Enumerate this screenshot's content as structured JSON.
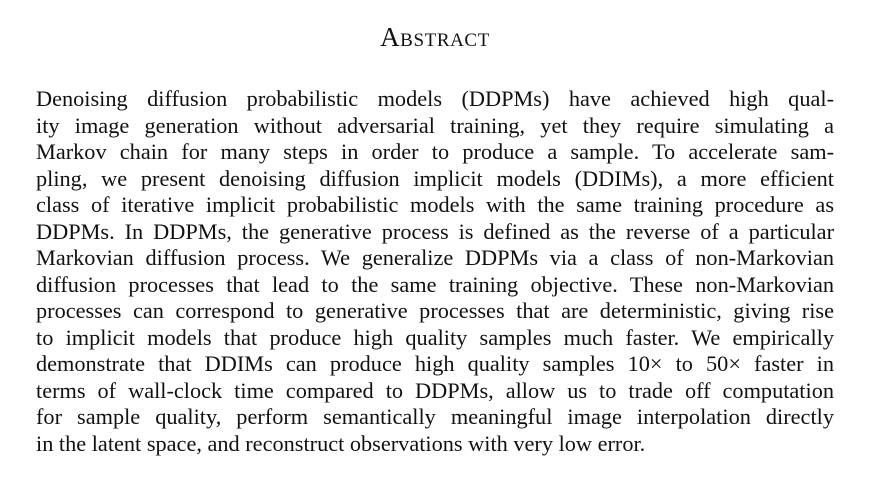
{
  "heading": "Abstract",
  "abstract_lines": [
    "Denoising diffusion probabilistic models (DDPMs) have achieved high qual-",
    "ity image generation without adversarial training, yet they require simulating a",
    "Markov chain for many steps in order to produce a sample.  To accelerate sam-",
    "pling, we present denoising diffusion implicit models (DDIMs), a more efficient",
    "class of iterative implicit probabilistic models with the same training procedure as",
    "DDPMs. In DDPMs, the generative process is defined as the reverse of a particular",
    "Markovian diffusion process. We generalize DDPMs via a class of non-Markovian",
    "diffusion processes that lead to the same training objective. These non-Markovian",
    "processes can correspond to generative processes that are deterministic, giving rise",
    "to implicit models that produce high quality samples much faster. We empirically",
    "demonstrate that DDIMs can produce high quality samples 10× to 50× faster in",
    "terms of wall-clock time compared to DDPMs, allow us to trade off computation",
    "for sample quality, perform semantically meaningful image interpolation directly",
    "in the latent space, and reconstruct observations with very low error."
  ]
}
